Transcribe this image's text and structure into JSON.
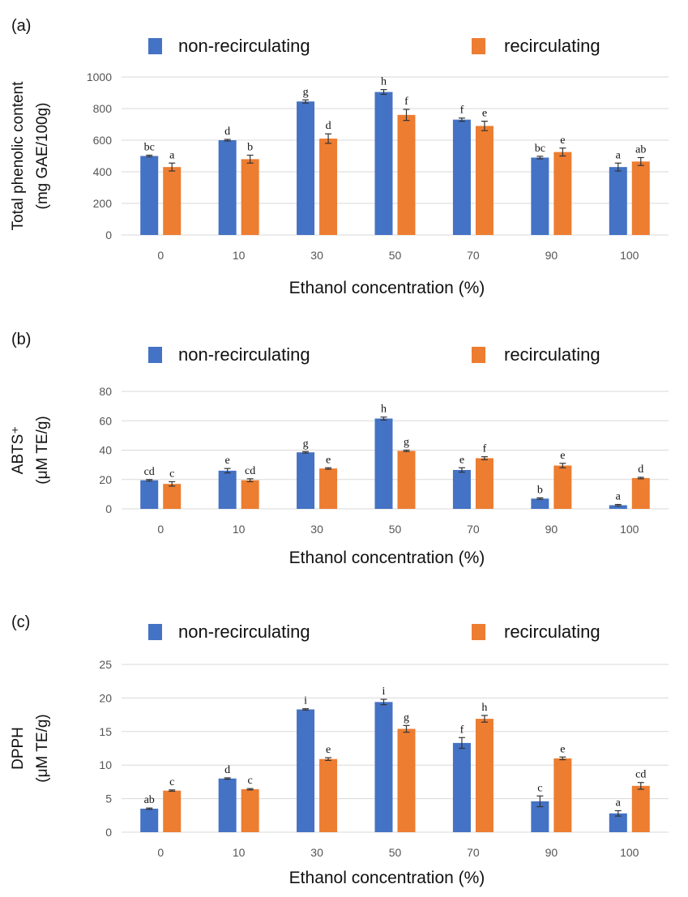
{
  "colors": {
    "non_recirculating": "#4472C4",
    "recirculating": "#ED7D31",
    "gridline": "#d9d9d9",
    "errorbar": "#333333"
  },
  "chart_data": [
    {
      "type": "bar",
      "panel_label": "(a)",
      "ylabel_lines": [
        "Total phenolic content",
        "(mg GAE/100g)"
      ],
      "xlabel": "Ethanol concentration (%)",
      "categories": [
        "0",
        "10",
        "30",
        "50",
        "70",
        "90",
        "100"
      ],
      "yticks": [
        "0",
        "200",
        "400",
        "600",
        "800",
        "1000"
      ],
      "ylim": [
        0,
        1000
      ],
      "grid": true,
      "legend_position": "top",
      "series": [
        {
          "name": "non-recirculating",
          "values": [
            500,
            600,
            845,
            905,
            730,
            490,
            430
          ],
          "errors": [
            5,
            5,
            10,
            15,
            10,
            8,
            25
          ],
          "labels": [
            "bc",
            "d",
            "g",
            "h",
            "f",
            "bc",
            "a"
          ]
        },
        {
          "name": "recirculating",
          "values": [
            430,
            480,
            610,
            760,
            690,
            525,
            465
          ],
          "errors": [
            25,
            25,
            30,
            35,
            30,
            25,
            25
          ],
          "labels": [
            "a",
            "b",
            "d",
            "f",
            "e",
            "e",
            "ab"
          ]
        }
      ]
    },
    {
      "type": "bar",
      "panel_label": "(b)",
      "ylabel_lines": [
        "ABTS⁺",
        "(μM TE/g)"
      ],
      "xlabel": "Ethanol concentration (%)",
      "categories": [
        "0",
        "10",
        "30",
        "50",
        "70",
        "90",
        "100"
      ],
      "yticks": [
        "0",
        "20",
        "40",
        "60",
        "80"
      ],
      "ylim": [
        0,
        80
      ],
      "grid": true,
      "legend_position": "top",
      "series": [
        {
          "name": "non-recirculating",
          "values": [
            19.5,
            26,
            38.5,
            61.5,
            26.5,
            7,
            2.5
          ],
          "errors": [
            0.5,
            1.5,
            0.5,
            1,
            1.5,
            0.5,
            0.5
          ],
          "labels": [
            "cd",
            "e",
            "g",
            "h",
            "e",
            "b",
            "a"
          ]
        },
        {
          "name": "recirculating",
          "values": [
            17,
            19.5,
            27.5,
            39.5,
            34.5,
            29.5,
            21
          ],
          "errors": [
            1.5,
            1,
            0.5,
            0.5,
            1,
            1.5,
            0.5
          ],
          "labels": [
            "c",
            "cd",
            "e",
            "g",
            "f",
            "e",
            "d"
          ]
        }
      ]
    },
    {
      "type": "bar",
      "panel_label": "(c)",
      "ylabel_lines": [
        "DPPH",
        "(μM TE/g)"
      ],
      "xlabel": "Ethanol concentration (%)",
      "categories": [
        "0",
        "10",
        "30",
        "50",
        "70",
        "90",
        "100"
      ],
      "yticks": [
        "0",
        "5",
        "10",
        "15",
        "20",
        "25"
      ],
      "ylim": [
        0,
        25
      ],
      "grid": true,
      "legend_position": "top",
      "series": [
        {
          "name": "non-recirculating",
          "values": [
            3.5,
            8,
            18.3,
            19.4,
            13.3,
            4.6,
            2.8
          ],
          "errors": [
            0.1,
            0.1,
            0.1,
            0.4,
            0.8,
            0.8,
            0.4
          ],
          "labels": [
            "ab",
            "d",
            "i",
            "i",
            "f",
            "c",
            "a"
          ]
        },
        {
          "name": "recirculating",
          "values": [
            6.2,
            6.4,
            10.9,
            15.4,
            16.9,
            11,
            6.9
          ],
          "errors": [
            0.1,
            0.1,
            0.2,
            0.5,
            0.5,
            0.2,
            0.5
          ],
          "labels": [
            "c",
            "c",
            "e",
            "g",
            "h",
            "e",
            "cd"
          ]
        }
      ]
    }
  ]
}
